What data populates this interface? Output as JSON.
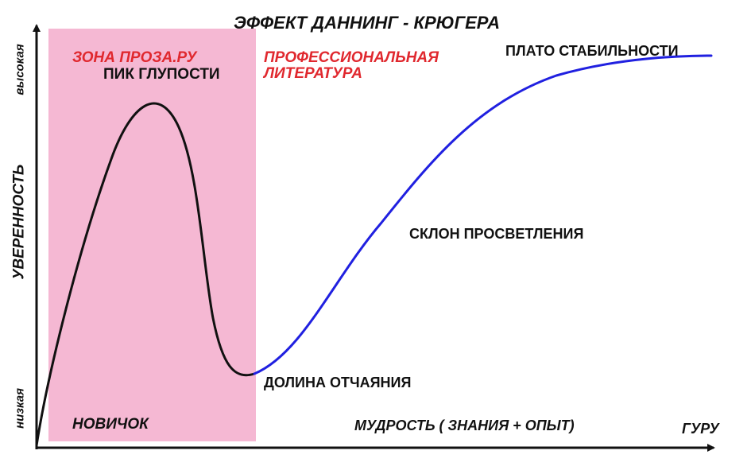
{
  "title": "ЭФФЕКТ ДАННИНГ -  КРЮГЕРА",
  "axes": {
    "y_label": "УВЕРЕННОСТЬ",
    "y_high": "высокая",
    "y_low": "низкая",
    "x_label": "МУДРОСТЬ (  ЗНАНИЯ + ОПЫТ)",
    "x_start": "НОВИЧОК",
    "x_end": "ГУРУ"
  },
  "zone": {
    "label": "ЗОНА ПРОЗА.РУ",
    "color": "#f5b8d3"
  },
  "professional": {
    "line1": "ПРОФЕССИОНАЛЬНАЯ",
    "line2": "ЛИТЕРАТУРА"
  },
  "points": {
    "peak": "ПИК ГЛУПОСТИ",
    "valley": "ДОЛИНА ОТЧАЯНИЯ",
    "slope": "СКЛОН ПРОСВЕТЛЕНИЯ",
    "plateau": "ПЛАТО СТАБИЛЬНОСТИ"
  },
  "colors": {
    "curve_early": "#111111",
    "curve_late": "#2020e0",
    "accent_red": "#e0282e",
    "axis": "#111111"
  }
}
